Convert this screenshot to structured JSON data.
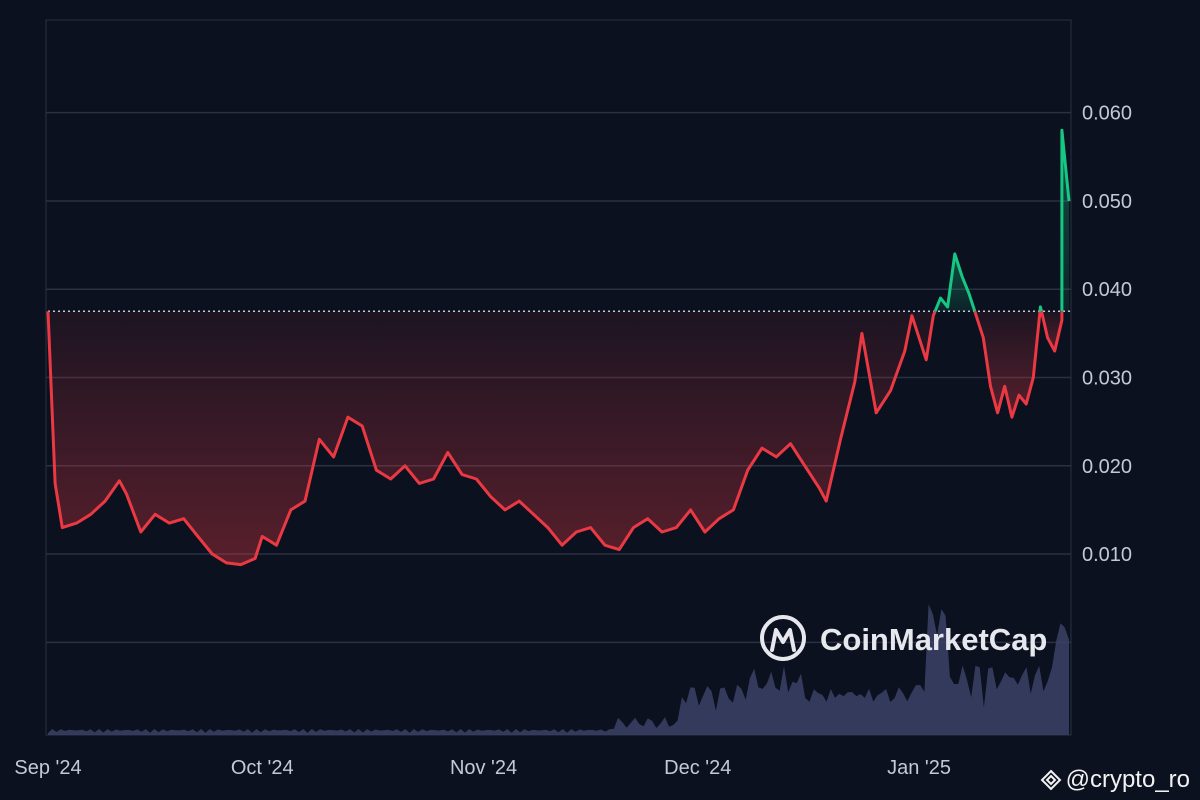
{
  "chart_data": {
    "type": "line",
    "x_ticks": [
      "Sep '24",
      "Oct '24",
      "Nov '24",
      "Dec '24",
      "Jan '25"
    ],
    "y_ticks": [
      "0.060",
      "0.050",
      "0.040",
      "0.030",
      "0.020",
      "0.010"
    ],
    "ylim": [
      -0.0105,
      0.0705
    ],
    "x_range": [
      "2024-09-01",
      "2025-01-22"
    ],
    "baseline": 0.0375,
    "colors": {
      "above": "#16c784",
      "below": "#ea3943",
      "volume": "#3c4266",
      "grid": "#2a3142",
      "background": "#0b111f"
    },
    "series": [
      {
        "values": [
          [
            "2024-09-01",
            0.0375
          ],
          [
            "2024-09-02",
            0.018
          ],
          [
            "2024-09-03",
            0.013
          ],
          [
            "2024-09-05",
            0.0135
          ],
          [
            "2024-09-07",
            0.0145
          ],
          [
            "2024-09-09",
            0.016
          ],
          [
            "2024-09-11",
            0.0183
          ],
          [
            "2024-09-12",
            0.0168
          ],
          [
            "2024-09-14",
            0.0125
          ],
          [
            "2024-09-16",
            0.0145
          ],
          [
            "2024-09-18",
            0.0135
          ],
          [
            "2024-09-20",
            0.014
          ],
          [
            "2024-09-22",
            0.012
          ],
          [
            "2024-09-24",
            0.01
          ],
          [
            "2024-09-26",
            0.009
          ],
          [
            "2024-09-28",
            0.0088
          ],
          [
            "2024-09-30",
            0.0095
          ],
          [
            "2024-10-01",
            0.012
          ],
          [
            "2024-10-03",
            0.011
          ],
          [
            "2024-10-05",
            0.015
          ],
          [
            "2024-10-07",
            0.016
          ],
          [
            "2024-10-09",
            0.023
          ],
          [
            "2024-10-11",
            0.021
          ],
          [
            "2024-10-13",
            0.0255
          ],
          [
            "2024-10-15",
            0.0245
          ],
          [
            "2024-10-17",
            0.0195
          ],
          [
            "2024-10-19",
            0.0185
          ],
          [
            "2024-10-21",
            0.02
          ],
          [
            "2024-10-23",
            0.018
          ],
          [
            "2024-10-25",
            0.0185
          ],
          [
            "2024-10-27",
            0.0215
          ],
          [
            "2024-10-29",
            0.019
          ],
          [
            "2024-10-31",
            0.0185
          ],
          [
            "2024-11-02",
            0.0165
          ],
          [
            "2024-11-04",
            0.015
          ],
          [
            "2024-11-06",
            0.016
          ],
          [
            "2024-11-08",
            0.0145
          ],
          [
            "2024-11-10",
            0.013
          ],
          [
            "2024-11-12",
            0.011
          ],
          [
            "2024-11-14",
            0.0125
          ],
          [
            "2024-11-16",
            0.013
          ],
          [
            "2024-11-18",
            0.011
          ],
          [
            "2024-11-20",
            0.0105
          ],
          [
            "2024-11-22",
            0.013
          ],
          [
            "2024-11-24",
            0.014
          ],
          [
            "2024-11-26",
            0.0125
          ],
          [
            "2024-11-28",
            0.013
          ],
          [
            "2024-11-30",
            0.015
          ],
          [
            "2024-12-02",
            0.0125
          ],
          [
            "2024-12-04",
            0.014
          ],
          [
            "2024-12-06",
            0.015
          ],
          [
            "2024-12-08",
            0.0195
          ],
          [
            "2024-12-10",
            0.022
          ],
          [
            "2024-12-12",
            0.021
          ],
          [
            "2024-12-14",
            0.0225
          ],
          [
            "2024-12-16",
            0.02
          ],
          [
            "2024-12-18",
            0.0175
          ],
          [
            "2024-12-19",
            0.016
          ],
          [
            "2024-12-21",
            0.023
          ],
          [
            "2024-12-23",
            0.0295
          ],
          [
            "2024-12-24",
            0.035
          ],
          [
            "2024-12-26",
            0.026
          ],
          [
            "2024-12-28",
            0.0285
          ],
          [
            "2024-12-30",
            0.033
          ],
          [
            "2024-12-31",
            0.037
          ],
          [
            "2025-01-02",
            0.032
          ],
          [
            "2025-01-03",
            0.037
          ],
          [
            "2025-01-04",
            0.039
          ],
          [
            "2025-01-05",
            0.038
          ],
          [
            "2025-01-06",
            0.044
          ],
          [
            "2025-01-07",
            0.0415
          ],
          [
            "2025-01-08",
            0.0395
          ],
          [
            "2025-01-09",
            0.037
          ],
          [
            "2025-01-10",
            0.0345
          ],
          [
            "2025-01-11",
            0.029
          ],
          [
            "2025-01-12",
            0.026
          ],
          [
            "2025-01-13",
            0.029
          ],
          [
            "2025-01-14",
            0.0255
          ],
          [
            "2025-01-15",
            0.028
          ],
          [
            "2025-01-16",
            0.027
          ],
          [
            "2025-01-17",
            0.03
          ],
          [
            "2025-01-18",
            0.038
          ],
          [
            "2025-01-19",
            0.0345
          ],
          [
            "2025-01-20",
            0.033
          ],
          [
            "2025-01-21",
            0.0365
          ],
          [
            "2025-01-21",
            0.058
          ],
          [
            "2025-01-22",
            0.05
          ]
        ]
      }
    ],
    "volume_note": "relative volume bars drawn at bottom"
  },
  "watermark": {
    "text": "CoinMarketCap"
  },
  "credit": {
    "text": "@crypto_ro"
  }
}
